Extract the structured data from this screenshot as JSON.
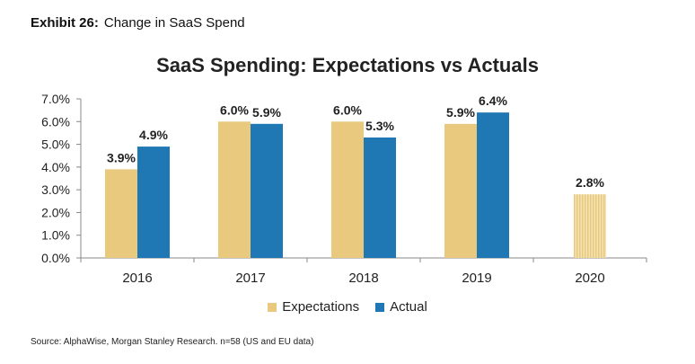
{
  "exhibit": {
    "label": "Exhibit 26:",
    "title": "Change in SaaS Spend"
  },
  "source": "Source: AlphaWise, Morgan Stanley Research. n=58 (US and EU data)",
  "colors": {
    "expectations": "#e8c97e",
    "actual": "#1f77b4",
    "axis": "#888888",
    "text": "#222222"
  },
  "chart_data": {
    "type": "bar",
    "title": "SaaS Spending: Expectations vs Actuals",
    "categories": [
      "2016",
      "2017",
      "2018",
      "2019",
      "2020"
    ],
    "series": [
      {
        "name": "Expectations",
        "values": [
          3.9,
          6.0,
          6.0,
          5.9,
          2.8
        ],
        "labels": [
          "3.9%",
          "6.0%",
          "6.0%",
          "5.9%",
          "2.8%"
        ]
      },
      {
        "name": "Actual",
        "values": [
          4.9,
          5.9,
          5.3,
          6.4,
          null
        ],
        "labels": [
          "4.9%",
          "5.9%",
          "5.3%",
          "6.4%",
          ""
        ]
      }
    ],
    "ylim": [
      0,
      7
    ],
    "yticks": [
      "0.0%",
      "1.0%",
      "2.0%",
      "3.0%",
      "4.0%",
      "5.0%",
      "6.0%",
      "7.0%"
    ],
    "hatched": [
      "2020"
    ],
    "legend_position": "bottom"
  }
}
